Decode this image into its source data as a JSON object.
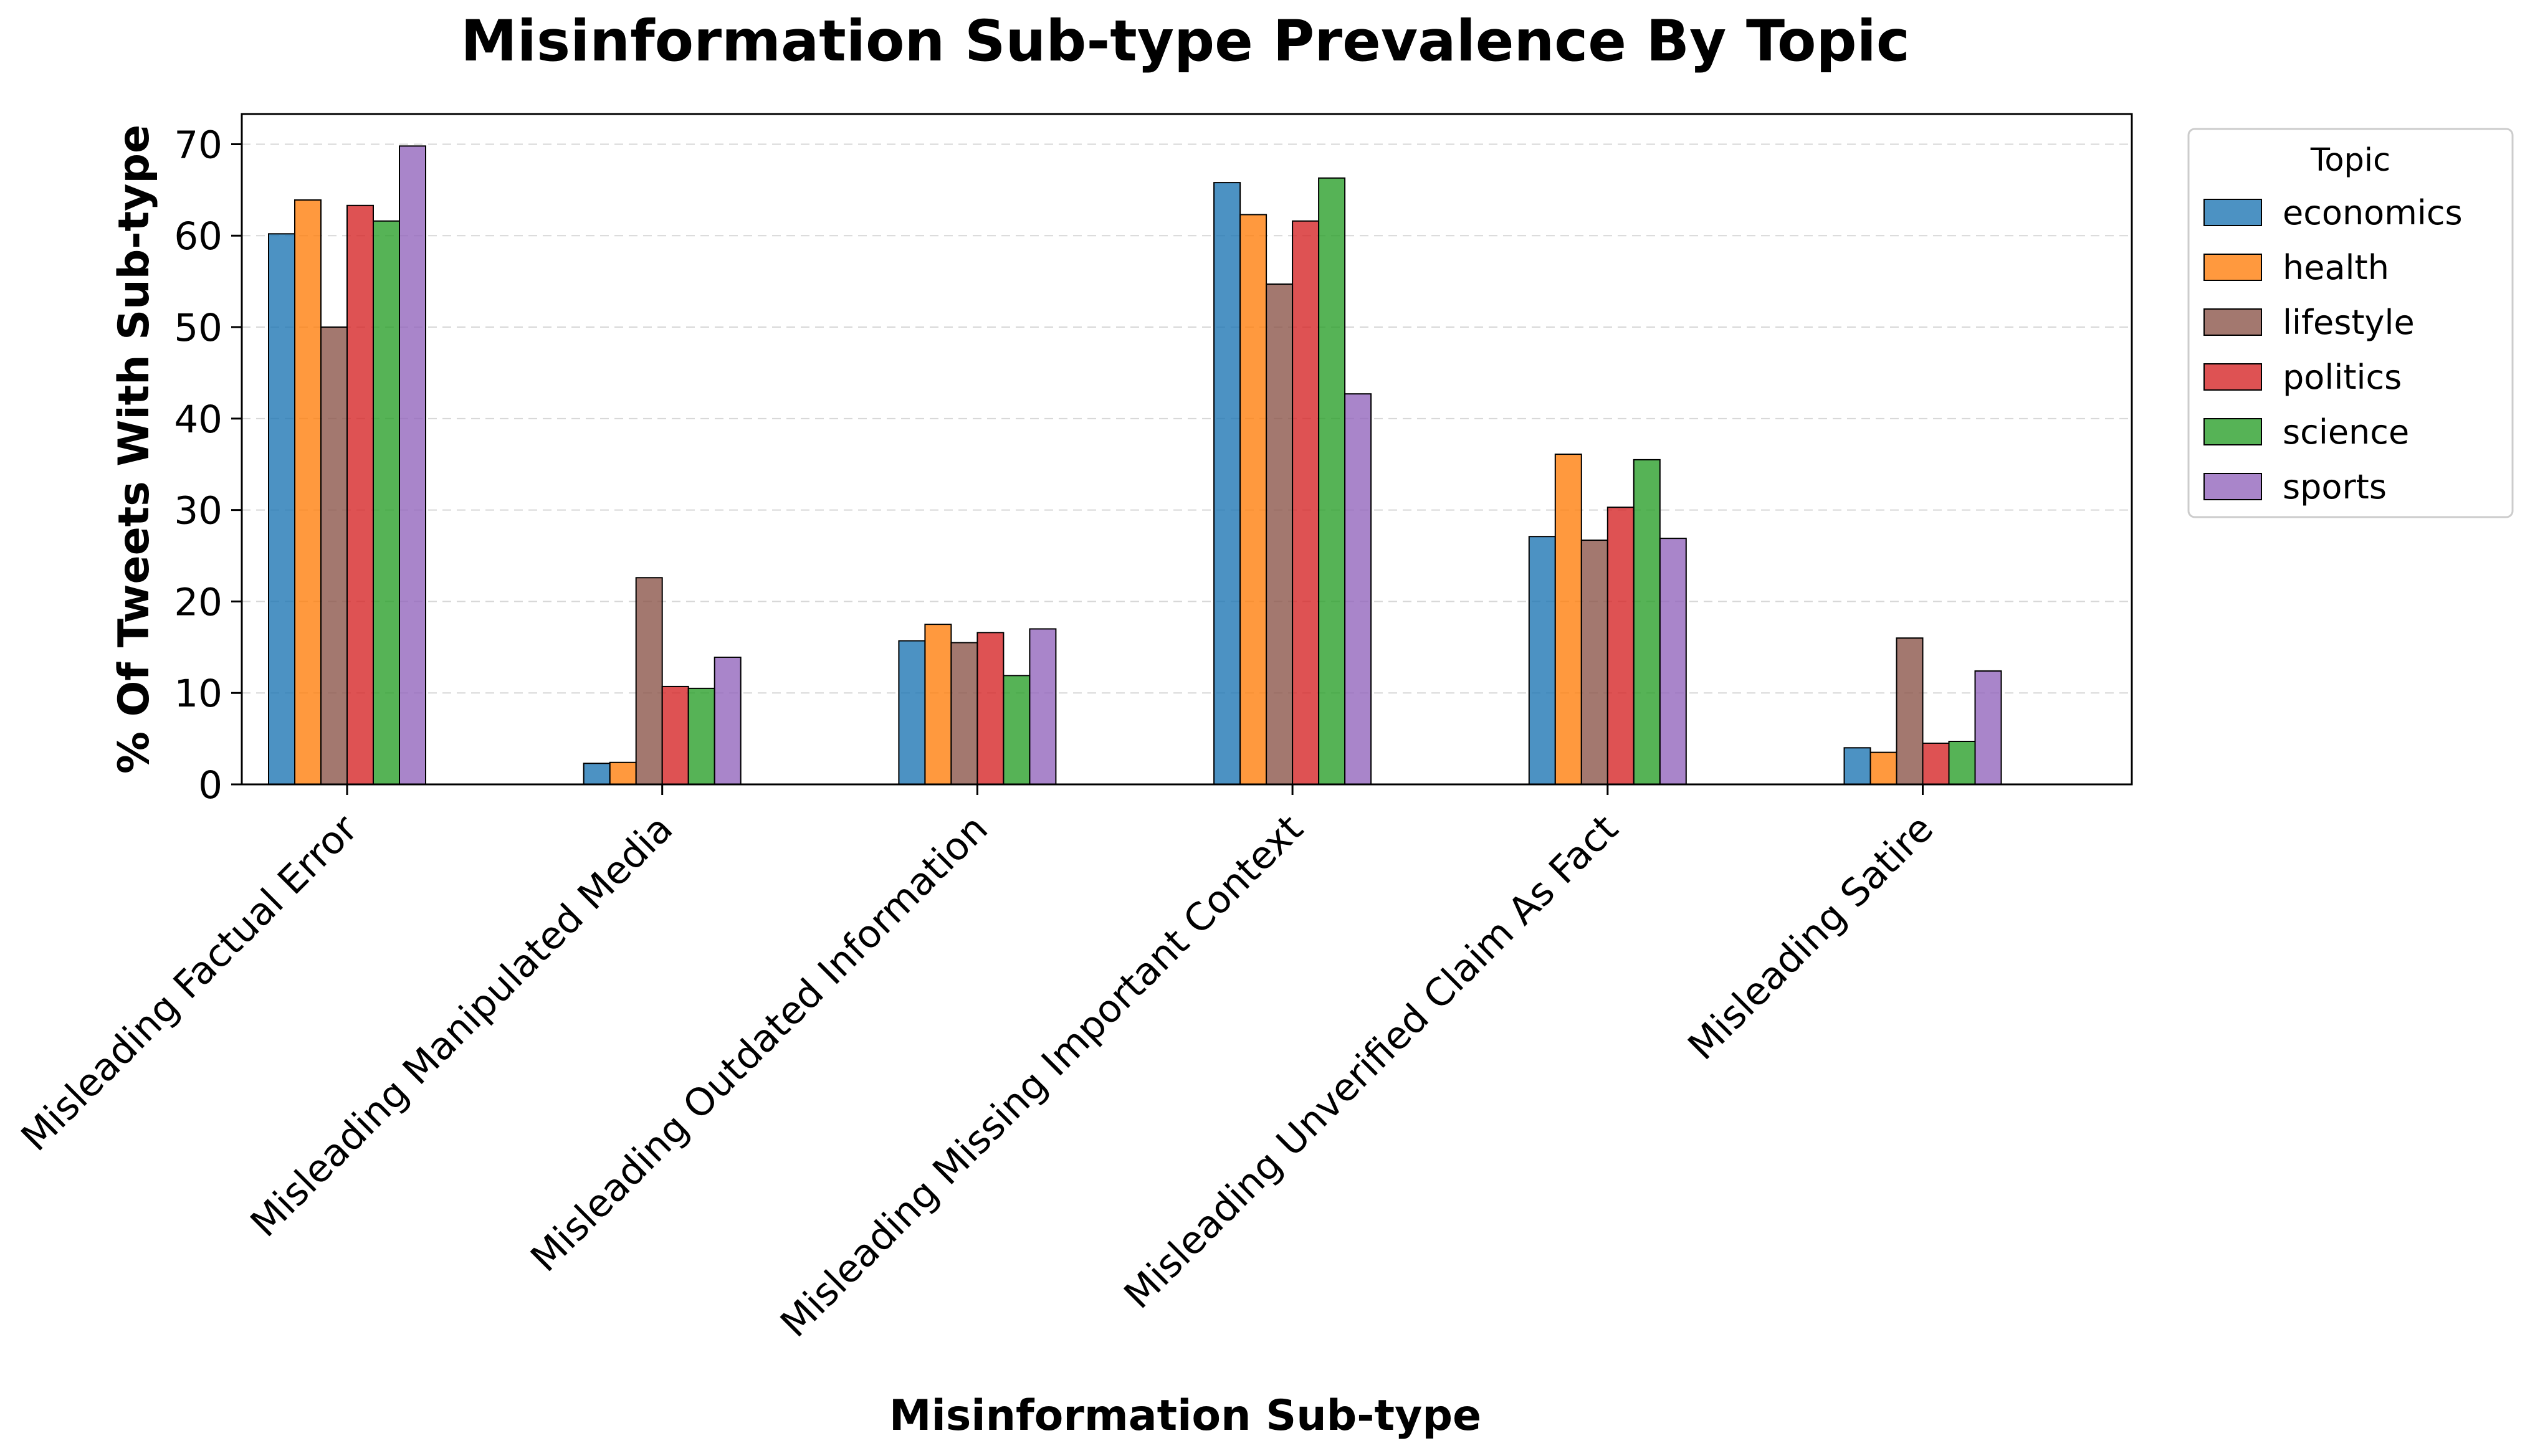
{
  "chart_data": {
    "type": "bar",
    "title": "Misinformation Sub-type Prevalence By Topic",
    "xlabel": "Misinformation Sub-type",
    "ylabel": "% Of Tweets With Sub-type",
    "categories": [
      "Misleading Factual Error",
      "Misleading Manipulated Media",
      "Misleading Outdated Information",
      "Misleading Missing Important Context",
      "Misleading Unverified Claim As Fact",
      "Misleading Satire"
    ],
    "series": [
      {
        "name": "economics",
        "color": "#1f77b4",
        "values": [
          60.2,
          2.3,
          15.7,
          65.8,
          27.1,
          4.0
        ]
      },
      {
        "name": "health",
        "color": "#ff7f0e",
        "values": [
          63.9,
          2.4,
          17.5,
          62.3,
          36.1,
          3.5
        ]
      },
      {
        "name": "lifestyle",
        "color": "#8c564b",
        "values": [
          50.0,
          22.6,
          15.5,
          54.7,
          26.7,
          16.0
        ]
      },
      {
        "name": "politics",
        "color": "#d62728",
        "values": [
          63.3,
          10.7,
          16.6,
          61.6,
          30.3,
          4.5
        ]
      },
      {
        "name": "science",
        "color": "#2ca02c",
        "values": [
          61.6,
          10.5,
          11.9,
          66.3,
          35.5,
          4.7
        ]
      },
      {
        "name": "sports",
        "color": "#9467bd",
        "values": [
          69.8,
          13.9,
          17.0,
          42.7,
          26.9,
          12.4
        ]
      }
    ],
    "ylim": [
      0,
      73.3
    ],
    "yticks": [
      0,
      10,
      20,
      30,
      40,
      50,
      60,
      70
    ],
    "grid": "y-dashed",
    "bar_opacity": 0.8,
    "legend": {
      "title": "Topic",
      "placement": "outside-right-top"
    }
  }
}
